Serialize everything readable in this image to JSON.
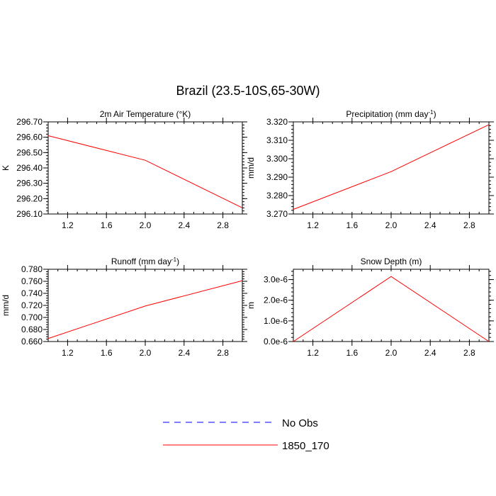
{
  "figure": {
    "title": "Brazil (23.5-10S,65-30W)"
  },
  "legend": {
    "entries": [
      {
        "label": "No Obs",
        "color": "#0000ff",
        "dash": "dashed"
      },
      {
        "label": "1850_170",
        "color": "#ff0000",
        "dash": "solid"
      }
    ]
  },
  "chart_data": [
    {
      "type": "line",
      "title": "2m Air Temperature (°K)",
      "ylabel": "K",
      "xlim": [
        1,
        3
      ],
      "ylim": [
        296.1,
        296.7
      ],
      "xticks": [
        "1.2",
        "1.6",
        "2.0",
        "2.4",
        "2.8"
      ],
      "xtick_values": [
        1.2,
        1.6,
        2.0,
        2.4,
        2.8
      ],
      "yticks": [
        "296.10",
        "296.20",
        "296.30",
        "296.40",
        "296.50",
        "296.60",
        "296.70"
      ],
      "ytick_values": [
        296.1,
        296.2,
        296.3,
        296.4,
        296.5,
        296.6,
        296.7
      ],
      "series": [
        {
          "name": "1850_170",
          "color": "#ff0000",
          "x": [
            1,
            2,
            3
          ],
          "y": [
            296.61,
            296.45,
            296.14
          ]
        }
      ]
    },
    {
      "type": "line",
      "title": "Precipitation (mm day-1)",
      "ylabel": "mm/d",
      "xlim": [
        1,
        3
      ],
      "ylim": [
        3.27,
        3.32
      ],
      "xticks": [
        "1.2",
        "1.6",
        "2.0",
        "2.4",
        "2.8"
      ],
      "xtick_values": [
        1.2,
        1.6,
        2.0,
        2.4,
        2.8
      ],
      "yticks": [
        "3.270",
        "3.280",
        "3.290",
        "3.300",
        "3.310",
        "3.320"
      ],
      "ytick_values": [
        3.27,
        3.28,
        3.29,
        3.3,
        3.31,
        3.32
      ],
      "series": [
        {
          "name": "1850_170",
          "color": "#ff0000",
          "x": [
            1,
            2,
            3
          ],
          "y": [
            3.2725,
            3.293,
            3.3185
          ]
        }
      ]
    },
    {
      "type": "line",
      "title": "Runoff (mm day-1)",
      "ylabel": "mm/d",
      "xlim": [
        1,
        3
      ],
      "ylim": [
        0.66,
        0.78
      ],
      "xticks": [
        "1.2",
        "1.6",
        "2.0",
        "2.4",
        "2.8"
      ],
      "xtick_values": [
        1.2,
        1.6,
        2.0,
        2.4,
        2.8
      ],
      "yticks": [
        "0.660",
        "0.680",
        "0.700",
        "0.720",
        "0.740",
        "0.760",
        "0.780"
      ],
      "ytick_values": [
        0.66,
        0.68,
        0.7,
        0.72,
        0.74,
        0.76,
        0.78
      ],
      "series": [
        {
          "name": "1850_170",
          "color": "#ff0000",
          "x": [
            1,
            2,
            3
          ],
          "y": [
            0.665,
            0.719,
            0.761
          ]
        }
      ]
    },
    {
      "type": "line",
      "title": "Snow Depth (m)",
      "ylabel": "m",
      "xlim": [
        1,
        3
      ],
      "ylim": [
        0,
        3.5e-06
      ],
      "xticks": [
        "1.2",
        "1.6",
        "2.0",
        "2.4",
        "2.8"
      ],
      "xtick_values": [
        1.2,
        1.6,
        2.0,
        2.4,
        2.8
      ],
      "yticks": [
        "0.0e-6",
        "1.0e-6",
        "2.0e-6",
        "3.0e-6"
      ],
      "ytick_values": [
        0,
        1e-06,
        2e-06,
        3e-06
      ],
      "series": [
        {
          "name": "1850_170",
          "color": "#ff0000",
          "x": [
            1,
            2,
            3
          ],
          "y": [
            0,
            3.15e-06,
            0
          ]
        }
      ]
    }
  ]
}
